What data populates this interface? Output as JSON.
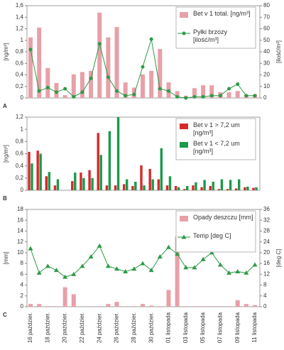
{
  "chart_data": [
    {
      "type": "bar",
      "panel": "A",
      "ylabel": "[ng/m³]",
      "y2label": "[ilość/m³]",
      "legend": "upper right",
      "ylim": [
        0,
        1.6
      ],
      "yticks": [
        0,
        {
          "value": 0.2,
          "label": "0,2"
        },
        {
          "value": 0.4,
          "label": "0,4"
        },
        {
          "value": 0.6,
          "label": "0,6"
        },
        {
          "value": 0.8,
          "label": "0,8"
        },
        1,
        {
          "value": 1.2,
          "label": "1,2"
        },
        {
          "value": 1.4,
          "label": "1,4"
        },
        {
          "value": 1.6,
          "label": "1,6"
        }
      ],
      "y2lim": [
        0,
        80
      ],
      "y2ticks": [
        0,
        10,
        20,
        30,
        40,
        50,
        60,
        70,
        80
      ],
      "series": [
        {
          "name": "Bet v 1 total. [ng/m³]",
          "type": "bar",
          "color": "#e8a0a8",
          "values": [
            1.05,
            1.22,
            0.52,
            0.26,
            0.05,
            0.41,
            0.45,
            0.47,
            1.48,
            1.05,
            1.23,
            0.27,
            0.18,
            0.41,
            0.47,
            0.85,
            0.27,
            0.12,
            0.04,
            0.17,
            0.22,
            0.22,
            0.1,
            0.1,
            0.12,
            0.05,
            0.06
          ]
        },
        {
          "name": "Pyłki brzozy [ilość/m³]",
          "type": "line",
          "marker": "circle",
          "axis": "y2",
          "color": "#2e9a48",
          "values": [
            42,
            6,
            9,
            5,
            8,
            1,
            5,
            17,
            47,
            18,
            6,
            2,
            3,
            27,
            51,
            8,
            6,
            1,
            0,
            1,
            1,
            2,
            2,
            8,
            12,
            2,
            2
          ]
        }
      ]
    },
    {
      "type": "bar",
      "panel": "B",
      "ylabel": "[ng/m³]",
      "legend": "upper right",
      "ylim": [
        0,
        1.2
      ],
      "yticks": [
        0,
        {
          "value": 0.2,
          "label": "0,2"
        },
        {
          "value": 0.4,
          "label": "0,4"
        },
        {
          "value": 0.6,
          "label": "0,6"
        },
        {
          "value": 0.8,
          "label": "0,8"
        },
        1,
        {
          "value": 1.2,
          "label": "1,2"
        }
      ],
      "series": [
        {
          "name": "Bet v 1 > 7,2 um [ng/m³]",
          "type": "bar",
          "color": "#d42a2a",
          "values": [
            0.63,
            0.65,
            0.23,
            0.08,
            0,
            0.15,
            0.29,
            0.33,
            0.94,
            0.08,
            0.08,
            0.1,
            0.07,
            0.41,
            0.35,
            0.18,
            0.08,
            0.07,
            0.02,
            0.08,
            0.05,
            0.07,
            0.02,
            0.02,
            0.03,
            0.05,
            0.04
          ]
        },
        {
          "name": "Bet v 1 < 7,2 um [ng/m³]",
          "type": "bar",
          "color": "#1a9a4a",
          "values": [
            0.44,
            0.6,
            0.3,
            0.18,
            0,
            0.29,
            0.2,
            0.2,
            0.58,
            0.97,
            1.2,
            0.18,
            0.14,
            0.08,
            0.18,
            0.69,
            0.23,
            0.05,
            0.07,
            0.13,
            0.17,
            0.14,
            0.18,
            0.17,
            0.18,
            0.06,
            0.05
          ]
        }
      ]
    },
    {
      "type": "bar",
      "panel": "C",
      "ylabel": "[mm]",
      "y2label": "[deg C]",
      "legend": "upper right",
      "ylim": [
        0,
        18
      ],
      "yticks": [
        0,
        2,
        4,
        6,
        8,
        10,
        12,
        14,
        16,
        18
      ],
      "y2lim": [
        0,
        36
      ],
      "y2ticks": [
        0,
        4,
        8,
        12,
        16,
        20,
        24,
        28,
        32,
        36
      ],
      "categories": [
        "16 paździer.",
        null,
        "18 paździer.",
        null,
        "20 paździer.",
        null,
        "22 paździer.",
        null,
        "24 paździer.",
        null,
        "26 paździer.",
        null,
        "28 paździer.",
        null,
        "30 paździer.",
        null,
        "01 listopada",
        null,
        "03 listopada",
        null,
        "05 listopada",
        null,
        "07 listopada",
        null,
        "09 listopada",
        null,
        "11 listopada"
      ],
      "series": [
        {
          "name": "Opady deszczu [mm]",
          "type": "bar",
          "color": "#e8a0a8",
          "values": [
            0.5,
            0.5,
            0.1,
            0.1,
            3.6,
            2.3,
            0,
            0.1,
            0.1,
            0.5,
            0.9,
            0.1,
            0.1,
            0.5,
            0.2,
            0.1,
            3.1,
            13,
            0.1,
            0.1,
            0.1,
            0.1,
            0.1,
            0.1,
            1.2,
            0.5,
            0.3
          ]
        },
        {
          "name": "Temp [deg C]",
          "type": "line",
          "marker": "triangle",
          "axis": "y2",
          "color": "#2e9a48",
          "values": [
            21.5,
            12.5,
            15,
            13.5,
            11,
            12,
            15,
            18.5,
            22.5,
            15,
            14,
            13,
            14,
            16,
            13.5,
            18.5,
            22,
            19.5,
            14.5,
            14.5,
            17.5,
            20,
            15.5,
            12.5,
            13,
            12.5,
            15.5
          ]
        }
      ]
    }
  ]
}
